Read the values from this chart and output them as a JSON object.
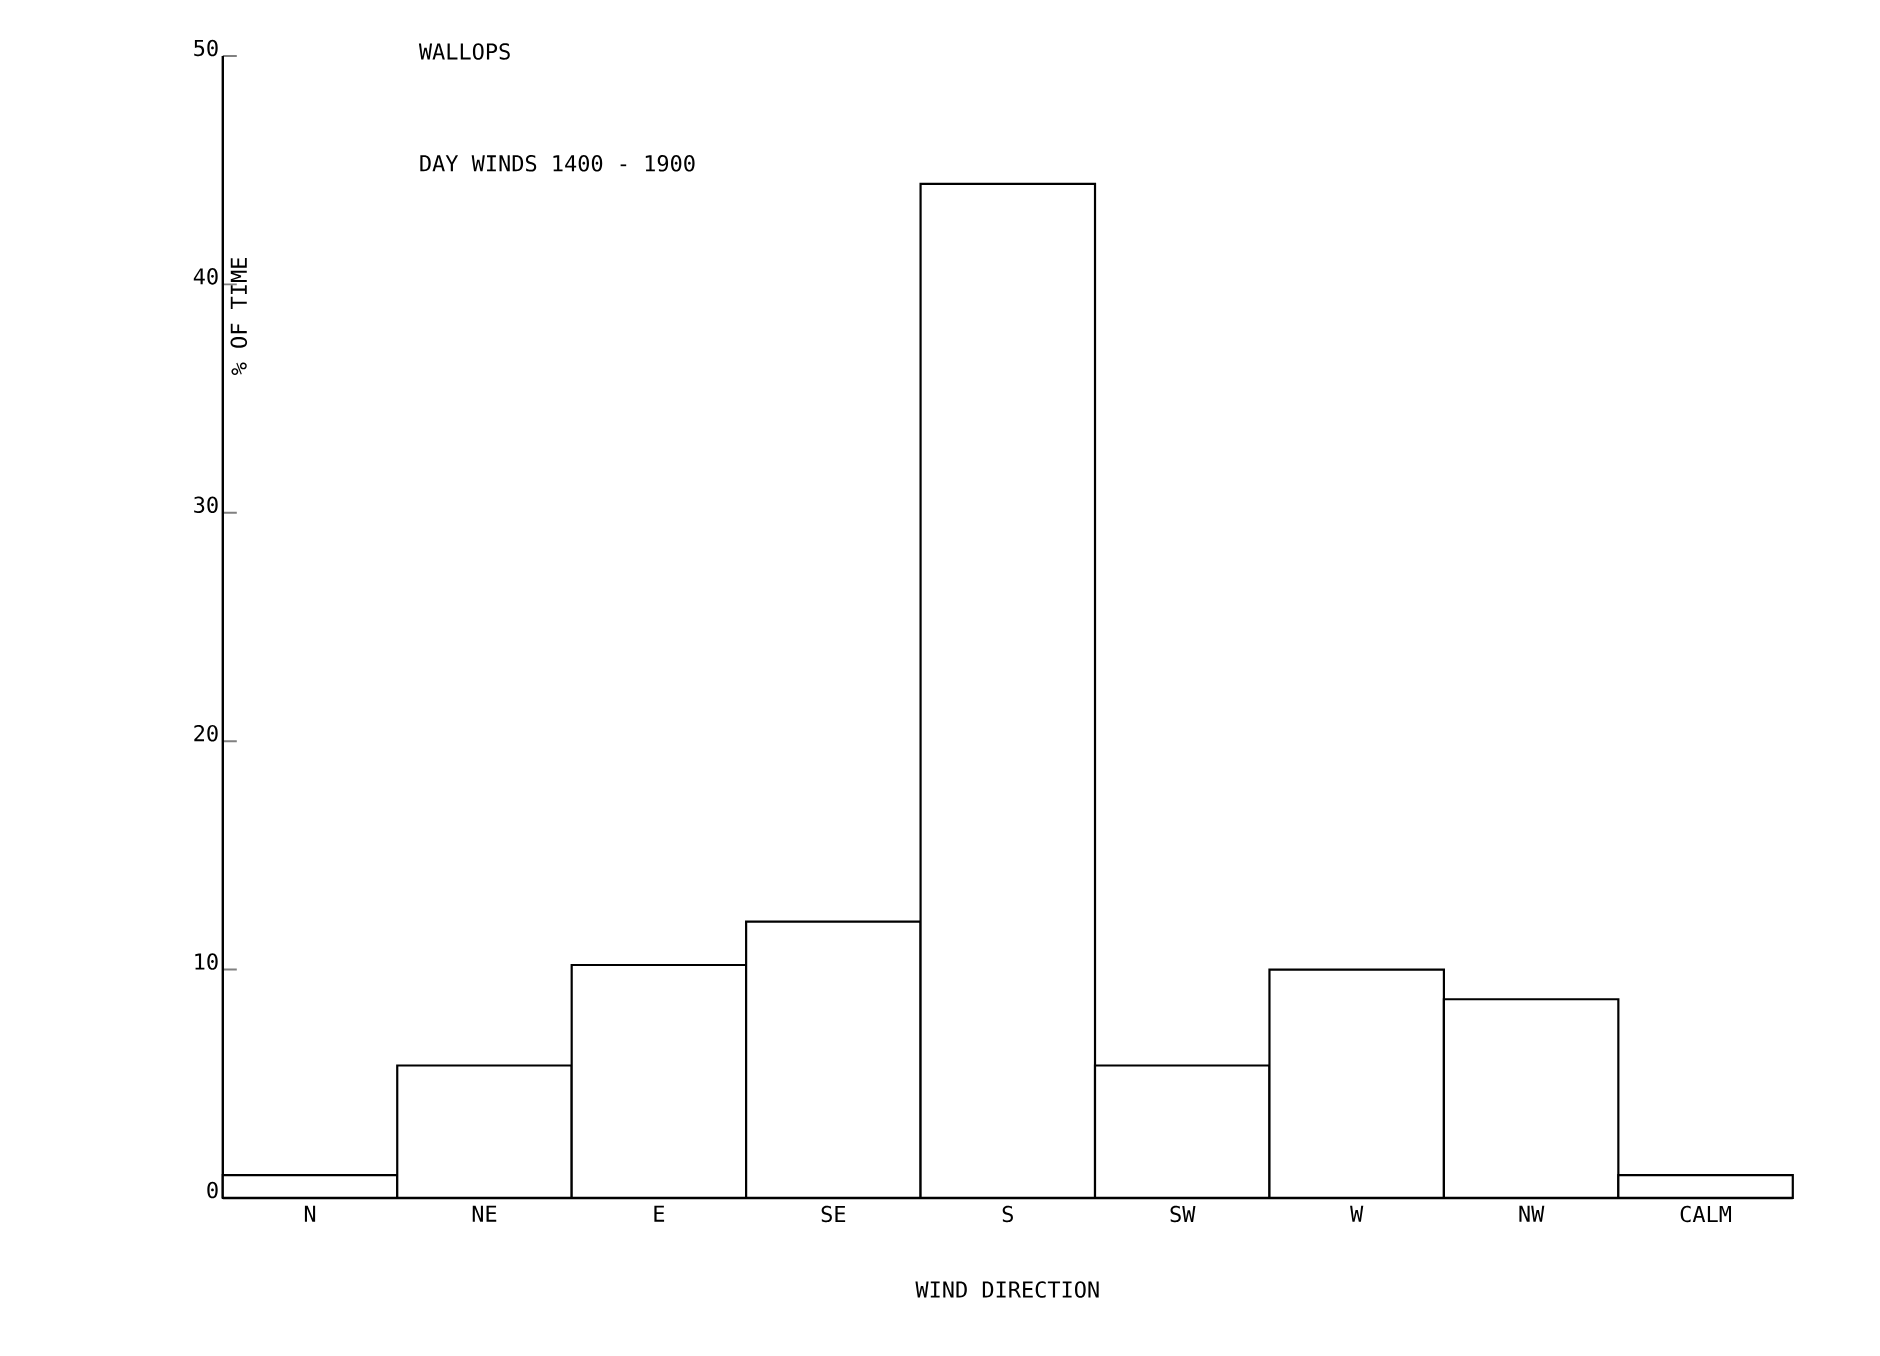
{
  "chart_data": {
    "type": "bar",
    "title": "WALLOPS",
    "subtitle": "DAY WINDS 1400 - 1900",
    "xlabel": "WIND DIRECTION",
    "ylabel": "% OF TIME",
    "categories": [
      "N",
      "NE",
      "E",
      "SE",
      "S",
      "SW",
      "W",
      "NW",
      "CALM"
    ],
    "values": [
      1.0,
      5.8,
      10.2,
      12.1,
      44.4,
      5.8,
      10.0,
      8.7,
      1.0
    ],
    "color": "#000000",
    "ylim": [
      0,
      50
    ],
    "yticks": [
      0,
      10,
      20,
      30,
      40,
      50
    ]
  }
}
